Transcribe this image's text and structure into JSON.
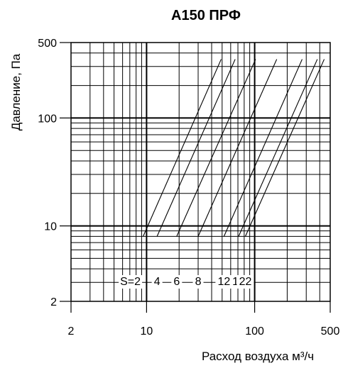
{
  "chart_data": {
    "type": "line",
    "title": "A150 ПРФ",
    "xlabel": "Расход воздуха м³/ч",
    "ylabel": "Давление, Па",
    "x_scale": "log",
    "y_scale": "log",
    "xlim": [
      2,
      500
    ],
    "ylim": [
      2,
      500
    ],
    "x_ticks": [
      "2",
      "10",
      "100",
      "500"
    ],
    "y_ticks": [
      "500",
      "100",
      "10",
      "2"
    ],
    "grid": true,
    "s_prefix": "S=",
    "series": [
      {
        "name": "2",
        "points": [
          [
            9.3,
            8
          ],
          [
            49,
            350
          ]
        ]
      },
      {
        "name": "4",
        "points": [
          [
            12.5,
            8
          ],
          [
            66,
            350
          ]
        ]
      },
      {
        "name": "6",
        "points": [
          [
            19,
            8
          ],
          [
            102,
            350
          ]
        ]
      },
      {
        "name": "8",
        "points": [
          [
            30,
            8
          ],
          [
            160,
            350
          ]
        ]
      },
      {
        "name": "12",
        "points": [
          [
            52,
            8
          ],
          [
            275,
            350
          ]
        ]
      },
      {
        "name": "18",
        "points": [
          [
            71,
            8
          ],
          [
            380,
            350
          ]
        ]
      },
      {
        "name": "22",
        "points": [
          [
            82,
            8
          ],
          [
            440,
            350
          ]
        ]
      }
    ]
  }
}
